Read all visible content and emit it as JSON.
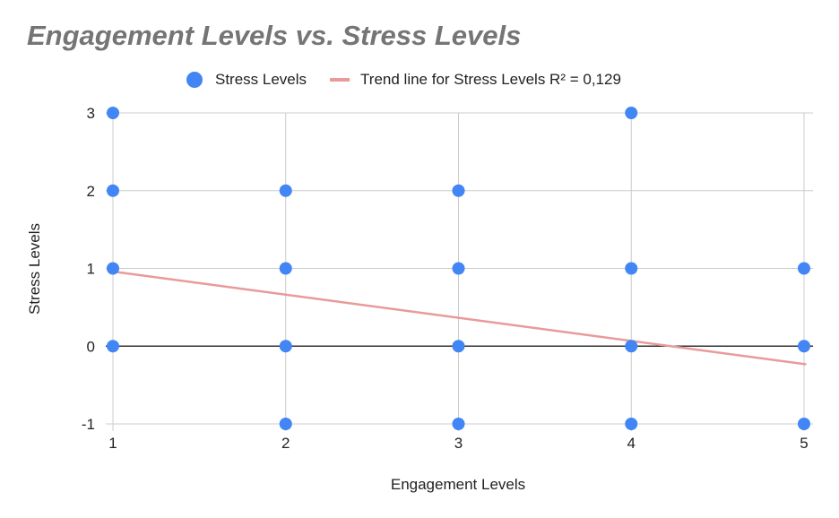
{
  "chart_data": {
    "type": "scatter",
    "title": "Engagement Levels vs. Stress Levels",
    "xlabel": "Engagement Levels",
    "ylabel": "Stress Levels",
    "xlim": [
      1,
      5
    ],
    "ylim": [
      -1,
      3
    ],
    "x_ticks": [
      "1",
      "2",
      "3",
      "4",
      "5"
    ],
    "y_ticks": [
      "-1",
      "0",
      "1",
      "2",
      "3"
    ],
    "grid": true,
    "legend_position": "top",
    "series": [
      {
        "name": "Stress Levels",
        "color": "#4285f4",
        "points": [
          [
            1,
            3
          ],
          [
            1,
            2
          ],
          [
            1,
            1
          ],
          [
            1,
            0
          ],
          [
            2,
            2
          ],
          [
            2,
            1
          ],
          [
            2,
            0
          ],
          [
            2,
            -1
          ],
          [
            3,
            2
          ],
          [
            3,
            1
          ],
          [
            3,
            0
          ],
          [
            3,
            -1
          ],
          [
            4,
            3
          ],
          [
            4,
            1
          ],
          [
            4,
            0
          ],
          [
            4,
            -1
          ],
          [
            5,
            1
          ],
          [
            5,
            0
          ],
          [
            5,
            -1
          ]
        ]
      }
    ],
    "trendline": {
      "label": "Trend line for Stress Levels R² = 0,129",
      "color": "#e99a9a",
      "start": [
        1,
        0.96
      ],
      "end": [
        5,
        -0.23
      ]
    }
  }
}
